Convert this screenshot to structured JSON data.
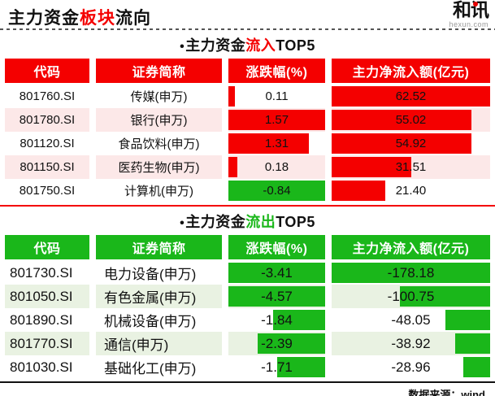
{
  "page": {
    "title": {
      "prefix": "主力资金",
      "highlight": "板块",
      "suffix": "流向"
    },
    "logo": {
      "text": "和讯",
      "domain": "hexun.com"
    },
    "source": "数据来源：wind"
  },
  "colors": {
    "red": "#f40000",
    "green": "#1ab71a",
    "row_pink": "#fce8e8",
    "row_light_green": "#e9f2e2"
  },
  "tables": [
    {
      "title": {
        "bullet": "•",
        "prefix": "主力资金",
        "highlight": "流入",
        "suffix": "TOP5"
      },
      "accent": "red",
      "columns": [
        "代码",
        "证券简称",
        "涨跌幅(%)",
        "主力净流入额(亿元)"
      ],
      "rows": [
        {
          "code": "801760.SI",
          "name": "传媒(申万)",
          "change": "0.11",
          "change_bar_pct": 7,
          "flow": "62.52",
          "flow_bar_pct": 100
        },
        {
          "code": "801780.SI",
          "name": "银行(申万)",
          "change": "1.57",
          "change_bar_pct": 100,
          "flow": "55.02",
          "flow_bar_pct": 88
        },
        {
          "code": "801120.SI",
          "name": "食品饮料(申万)",
          "change": "1.31",
          "change_bar_pct": 83,
          "flow": "54.92",
          "flow_bar_pct": 88
        },
        {
          "code": "801150.SI",
          "name": "医药生物(申万)",
          "change": "0.18",
          "change_bar_pct": 9,
          "flow": "31.51",
          "flow_bar_pct": 50
        },
        {
          "code": "801750.SI",
          "name": "计算机(申万)",
          "change": "-0.84",
          "change_bar_pct": 100,
          "flow": "21.40",
          "flow_bar_pct": 34
        }
      ]
    },
    {
      "title": {
        "bullet": "•",
        "prefix": "主力资金",
        "highlight": "流出",
        "suffix": "TOP5"
      },
      "accent": "green",
      "columns": [
        "代码",
        "证券简称",
        "涨跌幅(%)",
        "主力净流入额(亿元)"
      ],
      "rows": [
        {
          "code": "801730.SI",
          "name": "电力设备(申万)",
          "change": "-3.41",
          "change_bar_pct": 100,
          "flow": "-178.18",
          "flow_bar_pct": 100
        },
        {
          "code": "801050.SI",
          "name": "有色金属(申万)",
          "change": "-4.57",
          "change_bar_pct": 100,
          "flow": "-100.75",
          "flow_bar_pct": 57
        },
        {
          "code": "801890.SI",
          "name": "机械设备(申万)",
          "change": "-1.84",
          "change_bar_pct": 54,
          "flow": "-48.05",
          "flow_bar_pct": 28
        },
        {
          "code": "801770.SI",
          "name": "通信(申万)",
          "change": "-2.39",
          "change_bar_pct": 70,
          "flow": "-38.92",
          "flow_bar_pct": 22
        },
        {
          "code": "801030.SI",
          "name": "基础化工(申万)",
          "change": "-1.71",
          "change_bar_pct": 50,
          "flow": "-28.96",
          "flow_bar_pct": 17
        }
      ]
    }
  ],
  "chart_data": [
    {
      "type": "table",
      "title": "主力资金流入TOP5",
      "columns": [
        "代码",
        "证券简称",
        "涨跌幅(%)",
        "主力净流入额(亿元)"
      ],
      "rows": [
        [
          "801760.SI",
          "传媒(申万)",
          0.11,
          62.52
        ],
        [
          "801780.SI",
          "银行(申万)",
          1.57,
          55.02
        ],
        [
          "801120.SI",
          "食品饮料(申万)",
          1.31,
          54.92
        ],
        [
          "801150.SI",
          "医药生物(申万)",
          0.18,
          31.51
        ],
        [
          "801750.SI",
          "计算机(申万)",
          -0.84,
          21.4
        ]
      ],
      "bar_rule": "in-cell bars, red for positive (left-anchored), green for negative (right-anchored), length proportional to |value| / column max"
    },
    {
      "type": "table",
      "title": "主力资金流出TOP5",
      "columns": [
        "代码",
        "证券简称",
        "涨跌幅(%)",
        "主力净流入额(亿元)"
      ],
      "rows": [
        [
          "801730.SI",
          "电力设备(申万)",
          -3.41,
          -178.18
        ],
        [
          "801050.SI",
          "有色金属(申万)",
          -4.57,
          -100.75
        ],
        [
          "801890.SI",
          "机械设备(申万)",
          -1.84,
          -48.05
        ],
        [
          "801770.SI",
          "通信(申万)",
          -2.39,
          -38.92
        ],
        [
          "801030.SI",
          "基础化工(申万)",
          -1.71,
          -28.96
        ]
      ],
      "bar_rule": "green right-anchored in-cell bars, length proportional to |value| / column max"
    }
  ]
}
